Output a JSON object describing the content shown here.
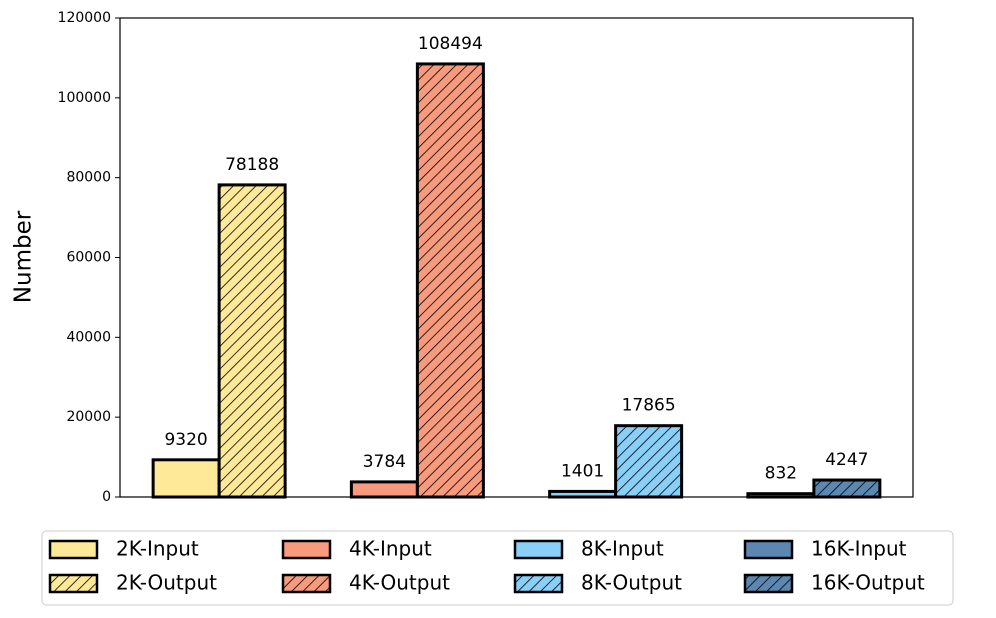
{
  "chart_data": {
    "type": "bar",
    "y_label": "Number",
    "categories": [
      null,
      null,
      null,
      null
    ],
    "series": [
      {
        "name": "2K-Input",
        "color": "#fee999",
        "hatch": false,
        "values": [
          9320,
          null,
          null,
          null
        ]
      },
      {
        "name": "2K-Output",
        "color": "#fee999",
        "hatch": true,
        "values": [
          78188,
          null,
          null,
          null
        ]
      },
      {
        "name": "4K-Input",
        "color": "#f79a7d",
        "hatch": false,
        "values": [
          null,
          3784,
          null,
          null
        ]
      },
      {
        "name": "4K-Output",
        "color": "#f79a7d",
        "hatch": true,
        "values": [
          null,
          108494,
          null,
          null
        ]
      },
      {
        "name": "8K-Input",
        "color": "#89cff8",
        "hatch": false,
        "values": [
          null,
          null,
          1401,
          null
        ]
      },
      {
        "name": "8K-Output",
        "color": "#89cff8",
        "hatch": true,
        "values": [
          null,
          null,
          17865,
          null
        ]
      },
      {
        "name": "16K-Input",
        "color": "#5b87b0",
        "hatch": false,
        "values": [
          null,
          null,
          null,
          832
        ]
      },
      {
        "name": "16K-Output",
        "color": "#5b87b0",
        "hatch": true,
        "values": [
          null,
          null,
          null,
          4247
        ]
      }
    ],
    "ylim": [
      0,
      120000
    ],
    "yticks": [
      0,
      20000,
      40000,
      60000,
      80000,
      100000,
      120000
    ],
    "grid": false,
    "legend": "bottom"
  }
}
